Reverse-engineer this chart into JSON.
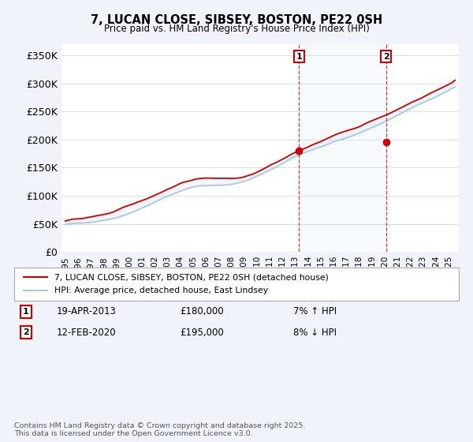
{
  "title": "7, LUCAN CLOSE, SIBSEY, BOSTON, PE22 0SH",
  "subtitle": "Price paid vs. HM Land Registry's House Price Index (HPI)",
  "ylabel_values": [
    "£0",
    "£50K",
    "£100K",
    "£150K",
    "£200K",
    "£250K",
    "£300K",
    "£350K"
  ],
  "yticks": [
    0,
    50000,
    100000,
    150000,
    200000,
    250000,
    300000,
    350000
  ],
  "ylim": [
    0,
    370000
  ],
  "xlim_start": 1994.7,
  "xlim_end": 2025.8,
  "sale1_date": 2013.29,
  "sale1_price": 180000,
  "sale1_label": "1",
  "sale2_date": 2020.11,
  "sale2_price": 195000,
  "sale2_label": "2",
  "hpi_color": "#a8c8e8",
  "price_color": "#cc0000",
  "sale_vline_color": "#cc0000",
  "legend_line1": "7, LUCAN CLOSE, SIBSEY, BOSTON, PE22 0SH (detached house)",
  "legend_line2": "HPI: Average price, detached house, East Lindsey",
  "sale1_row": "19-APR-2013",
  "sale1_amount": "£180,000",
  "sale1_hpi": "7% ↑ HPI",
  "sale2_row": "12-FEB-2020",
  "sale2_amount": "£195,000",
  "sale2_hpi": "8% ↓ HPI",
  "footer": "Contains HM Land Registry data © Crown copyright and database right 2025.\nThis data is licensed under the Open Government Licence v3.0.",
  "background_color": "#f0f4fa"
}
